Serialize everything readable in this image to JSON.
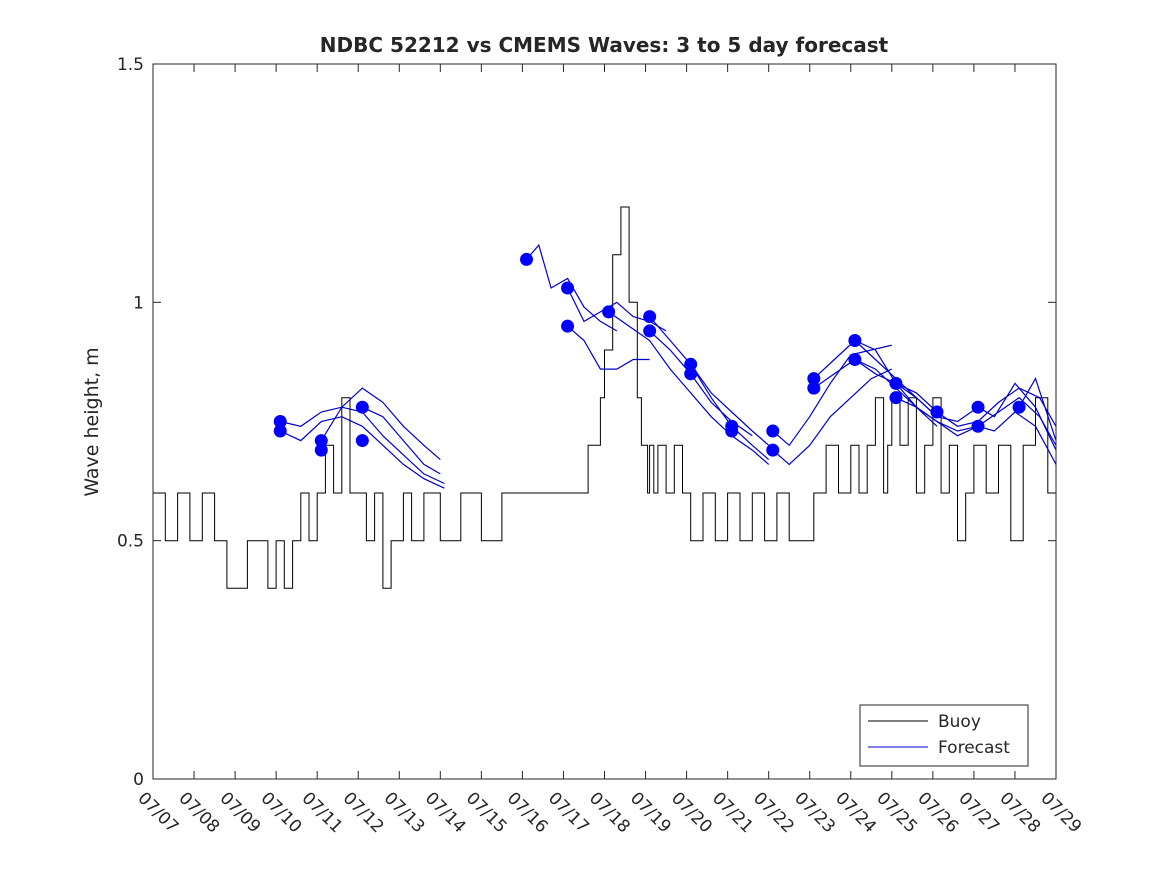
{
  "chart_data": {
    "type": "line",
    "title": "NDBC 52212 vs CMEMS Waves: 3 to 5 day forecast",
    "xlabel": "",
    "ylabel": "Wave height, m",
    "xlim": [
      "07/07",
      "07/29"
    ],
    "ylim": [
      0,
      1.5
    ],
    "x_tick_labels": [
      "07/07",
      "07/08",
      "07/09",
      "07/10",
      "07/11",
      "07/12",
      "07/13",
      "07/14",
      "07/15",
      "07/16",
      "07/17",
      "07/18",
      "07/19",
      "07/20",
      "07/21",
      "07/22",
      "07/23",
      "07/24",
      "07/25",
      "07/26",
      "07/27",
      "07/28",
      "07/29"
    ],
    "y_ticks": [
      0,
      0.5,
      1,
      1.5
    ],
    "y_tick_labels": [
      "0",
      "0.5",
      "1",
      "1.5"
    ],
    "grid": false,
    "legend": {
      "position": "bottom-right",
      "entries": [
        "Buoy",
        "Forecast"
      ]
    },
    "colors": {
      "buoy": "#000000",
      "forecast": "#0000cc",
      "markers": "#0000ff",
      "axes": "#262626"
    },
    "series": [
      {
        "name": "Buoy",
        "x_day_offset_from_07_07": [
          0,
          0.3,
          0.6,
          0.9,
          1.2,
          1.5,
          1.7,
          1.8,
          1.9,
          2.0,
          2.3,
          2.6,
          2.8,
          3.0,
          3.2,
          3.4,
          3.6,
          3.8,
          4.0,
          4.2,
          4.4,
          4.6,
          4.8,
          5.0,
          5.2,
          5.4,
          5.6,
          5.8,
          6.0,
          6.1,
          6.3,
          6.6,
          7.0,
          7.5,
          8.0,
          8.5,
          9.0,
          9.5,
          10.0,
          10.3,
          10.6,
          10.9,
          11.0,
          11.2,
          11.4,
          11.6,
          11.8,
          11.9,
          12.0,
          12.05,
          12.1,
          12.2,
          12.3,
          12.5,
          12.7,
          12.9,
          13.1,
          13.4,
          13.7,
          14.0,
          14.3,
          14.6,
          14.9,
          15.2,
          15.5,
          15.8,
          16.1,
          16.4,
          16.7,
          17.0,
          17.2,
          17.4,
          17.6,
          17.8,
          17.9,
          18.0,
          18.2,
          18.4,
          18.6,
          18.8,
          19.0,
          19.2,
          19.4,
          19.6,
          19.8,
          20.0,
          20.3,
          20.6,
          20.9,
          21.2,
          21.5,
          21.8,
          22.0
        ],
        "values": [
          0.6,
          0.5,
          0.6,
          0.5,
          0.6,
          0.5,
          0.5,
          0.4,
          0.4,
          0.4,
          0.5,
          0.5,
          0.4,
          0.5,
          0.4,
          0.5,
          0.6,
          0.5,
          0.6,
          0.7,
          0.6,
          0.8,
          0.6,
          0.6,
          0.5,
          0.6,
          0.4,
          0.5,
          0.5,
          0.6,
          0.5,
          0.6,
          0.5,
          0.6,
          0.5,
          0.6,
          0.6,
          0.6,
          0.6,
          0.6,
          0.7,
          0.8,
          0.9,
          1.1,
          1.2,
          1.0,
          0.8,
          0.7,
          0.7,
          0.6,
          0.7,
          0.6,
          0.7,
          0.6,
          0.7,
          0.6,
          0.5,
          0.6,
          0.5,
          0.6,
          0.5,
          0.6,
          0.5,
          0.6,
          0.5,
          0.5,
          0.6,
          0.7,
          0.6,
          0.7,
          0.6,
          0.7,
          0.8,
          0.6,
          0.7,
          0.8,
          0.7,
          0.8,
          0.6,
          0.7,
          0.8,
          0.6,
          0.7,
          0.5,
          0.6,
          0.7,
          0.6,
          0.7,
          0.5,
          0.7,
          0.8,
          0.6,
          0.7
        ]
      },
      {
        "name": "Forecast",
        "runs": [
          {
            "x_day_offset_from_07_07": [
              3.1,
              3.6,
              4.1,
              4.6,
              5.1,
              5.6,
              6.1,
              6.6,
              7.1
            ],
            "values": [
              0.75,
              0.74,
              0.77,
              0.78,
              0.77,
              0.72,
              0.68,
              0.64,
              0.62
            ]
          },
          {
            "x_day_offset_from_07_07": [
              3.1,
              3.6,
              4.1,
              4.6,
              5.1,
              5.6,
              6.1,
              6.6,
              7.1
            ],
            "values": [
              0.73,
              0.71,
              0.75,
              0.76,
              0.74,
              0.7,
              0.66,
              0.63,
              0.61
            ]
          },
          {
            "x_day_offset_from_07_07": [
              4.1,
              4.6,
              5.1,
              5.6,
              6.1,
              6.6,
              7.0
            ],
            "values": [
              0.71,
              0.78,
              0.82,
              0.79,
              0.74,
              0.7,
              0.67
            ]
          },
          {
            "x_day_offset_from_07_07": [
              5.1,
              5.6,
              6.1,
              6.6,
              7.0
            ],
            "values": [
              0.78,
              0.76,
              0.71,
              0.66,
              0.64
            ]
          },
          {
            "x_day_offset_from_07_07": [
              9.1,
              9.4,
              9.7,
              10.1,
              10.5,
              10.9,
              11.3
            ],
            "values": [
              1.09,
              1.12,
              1.03,
              1.05,
              0.99,
              0.96,
              0.94
            ]
          },
          {
            "x_day_offset_from_07_07": [
              10.1,
              10.5,
              10.9,
              11.3,
              11.7,
              12.1,
              12.5
            ],
            "values": [
              1.03,
              0.96,
              0.98,
              1.0,
              0.97,
              0.96,
              0.94
            ]
          },
          {
            "x_day_offset_from_07_07": [
              10.1,
              10.5,
              10.9,
              11.3,
              11.7,
              12.1
            ],
            "values": [
              0.95,
              0.92,
              0.86,
              0.86,
              0.88,
              0.88
            ]
          },
          {
            "x_day_offset_from_07_07": [
              11.1,
              11.6,
              12.1,
              12.6,
              13.1,
              13.6,
              14.1,
              14.6,
              15.0
            ],
            "values": [
              0.98,
              0.95,
              0.92,
              0.86,
              0.81,
              0.76,
              0.72,
              0.69,
              0.66
            ]
          },
          {
            "x_day_offset_from_07_07": [
              12.1,
              12.6,
              13.1,
              13.6,
              14.1,
              14.6,
              15.0
            ],
            "values": [
              0.97,
              0.92,
              0.87,
              0.8,
              0.74,
              0.7,
              0.67
            ]
          },
          {
            "x_day_offset_from_07_07": [
              12.1,
              12.6,
              13.1,
              13.6,
              14.1,
              14.6
            ],
            "values": [
              0.94,
              0.9,
              0.85,
              0.79,
              0.75,
              0.72
            ]
          },
          {
            "x_day_offset_from_07_07": [
              13.1,
              13.6,
              14.1,
              14.6,
              15.0
            ],
            "values": [
              0.87,
              0.81,
              0.77,
              0.73,
              0.7
            ]
          },
          {
            "x_day_offset_from_07_07": [
              15.1,
              15.5,
              16.0,
              16.5,
              17.0,
              17.5,
              18.0
            ],
            "values": [
              0.73,
              0.7,
              0.76,
              0.83,
              0.89,
              0.9,
              0.91
            ]
          },
          {
            "x_day_offset_from_07_07": [
              15.1,
              15.5,
              16.0,
              16.5,
              17.0,
              17.5,
              18.0
            ],
            "values": [
              0.69,
              0.66,
              0.7,
              0.76,
              0.8,
              0.84,
              0.86
            ]
          },
          {
            "x_day_offset_from_07_07": [
              16.1,
              16.6,
              17.1,
              17.6,
              18.1,
              18.6,
              19.1
            ],
            "values": [
              0.84,
              0.88,
              0.92,
              0.88,
              0.84,
              0.8,
              0.76
            ]
          },
          {
            "x_day_offset_from_07_07": [
              16.1,
              16.6,
              17.1,
              17.6,
              18.1,
              18.6,
              19.1
            ],
            "values": [
              0.82,
              0.85,
              0.88,
              0.86,
              0.82,
              0.78,
              0.74
            ]
          },
          {
            "x_day_offset_from_07_07": [
              17.1,
              17.6,
              18.1,
              18.6,
              19.1,
              19.6,
              20.1
            ],
            "values": [
              0.92,
              0.9,
              0.83,
              0.8,
              0.76,
              0.75,
              0.78
            ]
          },
          {
            "x_day_offset_from_07_07": [
              17.1,
              17.6,
              18.1,
              18.6,
              19.1,
              19.6,
              20.1
            ],
            "values": [
              0.88,
              0.85,
              0.83,
              0.78,
              0.75,
              0.72,
              0.74
            ]
          },
          {
            "x_day_offset_from_07_07": [
              18.1,
              18.6,
              19.1,
              19.6,
              20.1,
              20.6,
              21.1,
              21.6,
              22.0
            ],
            "values": [
              0.83,
              0.81,
              0.77,
              0.74,
              0.75,
              0.79,
              0.82,
              0.8,
              0.74
            ]
          },
          {
            "x_day_offset_from_07_07": [
              18.1,
              18.6,
              19.1,
              19.6,
              20.1,
              20.6,
              21.1,
              21.6,
              22.0
            ],
            "values": [
              0.8,
              0.78,
              0.75,
              0.73,
              0.74,
              0.77,
              0.8,
              0.76,
              0.7
            ]
          },
          {
            "x_day_offset_from_07_07": [
              20.1,
              20.5,
              21.0,
              21.5,
              22.0
            ],
            "values": [
              0.78,
              0.76,
              0.83,
              0.78,
              0.69
            ]
          },
          {
            "x_day_offset_from_07_07": [
              20.1,
              20.5,
              21.0,
              21.5,
              22.0
            ],
            "values": [
              0.74,
              0.73,
              0.77,
              0.74,
              0.66
            ]
          },
          {
            "x_day_offset_from_07_07": [
              21.1,
              21.5,
              22.0
            ],
            "values": [
              0.78,
              0.84,
              0.71
            ]
          }
        ]
      }
    ],
    "analysis_markers": {
      "x_day_offset_from_07_07": [
        3.1,
        3.1,
        4.1,
        4.1,
        5.1,
        5.1,
        9.1,
        10.1,
        10.1,
        11.1,
        12.1,
        12.1,
        13.1,
        13.1,
        14.1,
        14.1,
        15.1,
        15.1,
        16.1,
        16.1,
        17.1,
        17.1,
        18.1,
        18.1,
        19.1,
        20.1,
        20.1,
        21.1
      ],
      "values": [
        0.75,
        0.73,
        0.71,
        0.69,
        0.78,
        0.71,
        1.09,
        1.03,
        0.95,
        0.98,
        0.97,
        0.94,
        0.87,
        0.85,
        0.74,
        0.73,
        0.73,
        0.69,
        0.84,
        0.82,
        0.92,
        0.88,
        0.83,
        0.8,
        0.77,
        0.78,
        0.74,
        0.78
      ]
    }
  }
}
